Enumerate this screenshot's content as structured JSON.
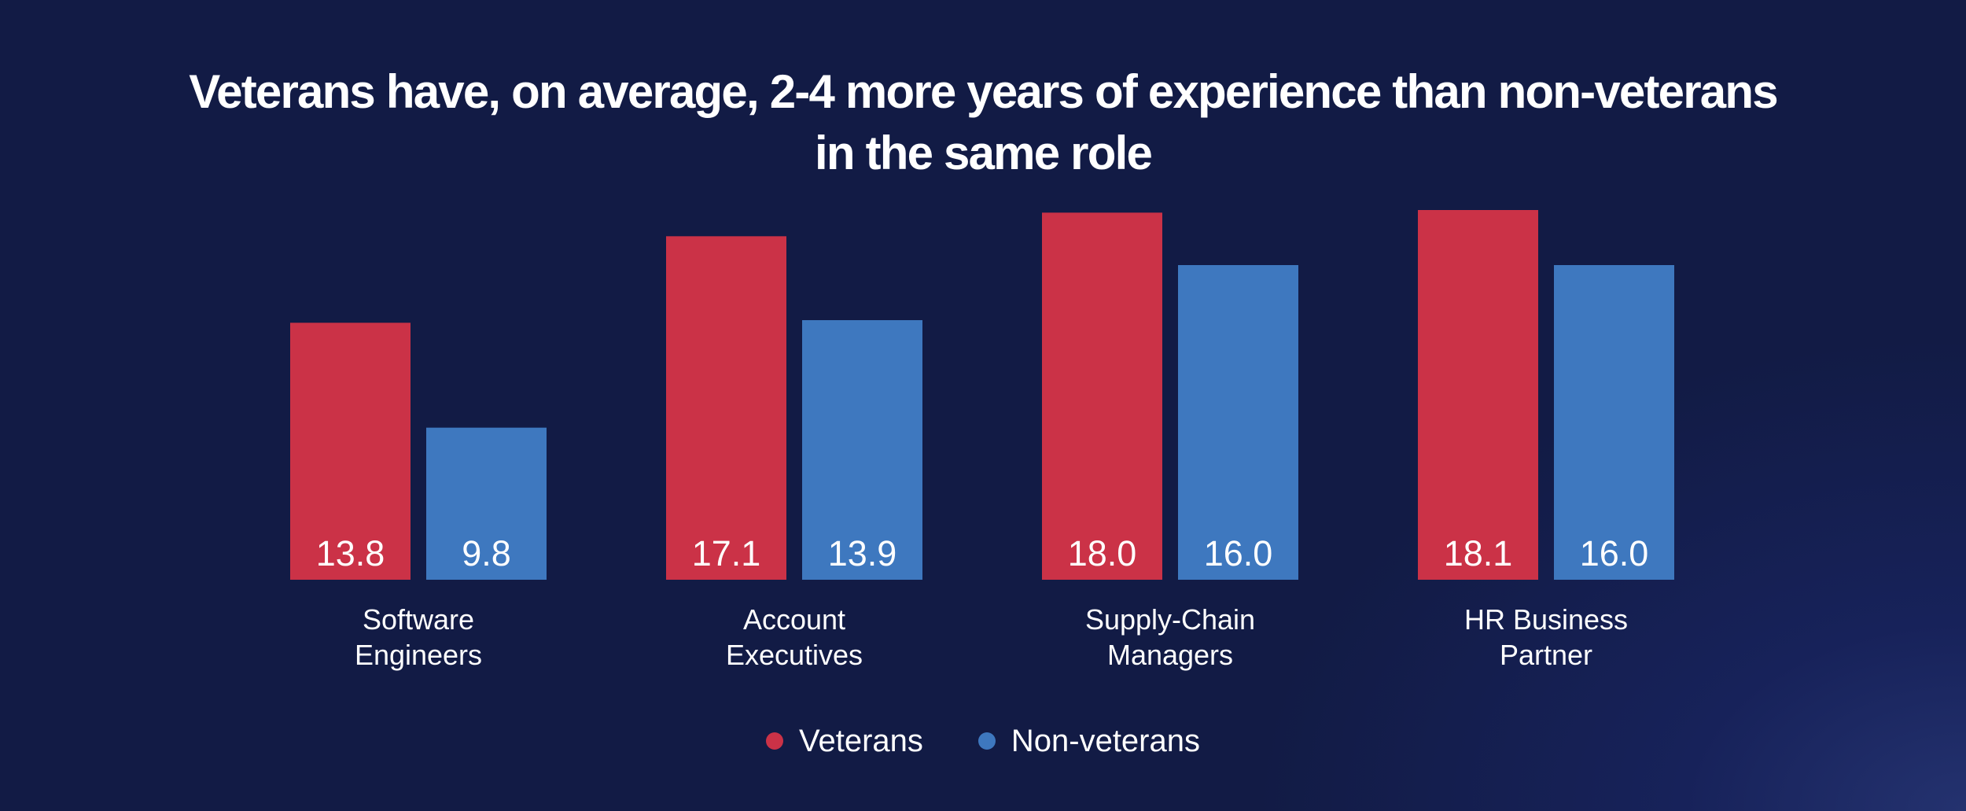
{
  "colors": {
    "background": "#121b45",
    "veterans": "#cb3247",
    "non_veterans": "#3e78bf",
    "text": "#ffffff"
  },
  "chart_data": {
    "type": "bar",
    "title_lines": [
      "Veterans have, on average, 2-4 more years of experience than non-veterans",
      "in the same role"
    ],
    "categories": [
      [
        "Software",
        "Engineers"
      ],
      [
        "Account",
        "Executives"
      ],
      [
        "Supply-Chain",
        "Managers"
      ],
      [
        "HR Business",
        "Partner"
      ]
    ],
    "series": [
      {
        "name": "Veterans",
        "color": "#cb3247",
        "values": [
          13.8,
          17.1,
          18.0,
          18.1
        ],
        "labels": [
          "13.8",
          "17.1",
          "18.0",
          "18.1"
        ]
      },
      {
        "name": "Non-veterans",
        "color": "#3e78bf",
        "values": [
          9.8,
          13.9,
          16.0,
          16.0
        ],
        "labels": [
          "9.8",
          "13.9",
          "16.0",
          "16.0"
        ]
      }
    ],
    "xlabel": "",
    "ylabel": "",
    "ylim": [
      4,
      18.1
    ],
    "grid": false,
    "legend": "bottom-center"
  }
}
